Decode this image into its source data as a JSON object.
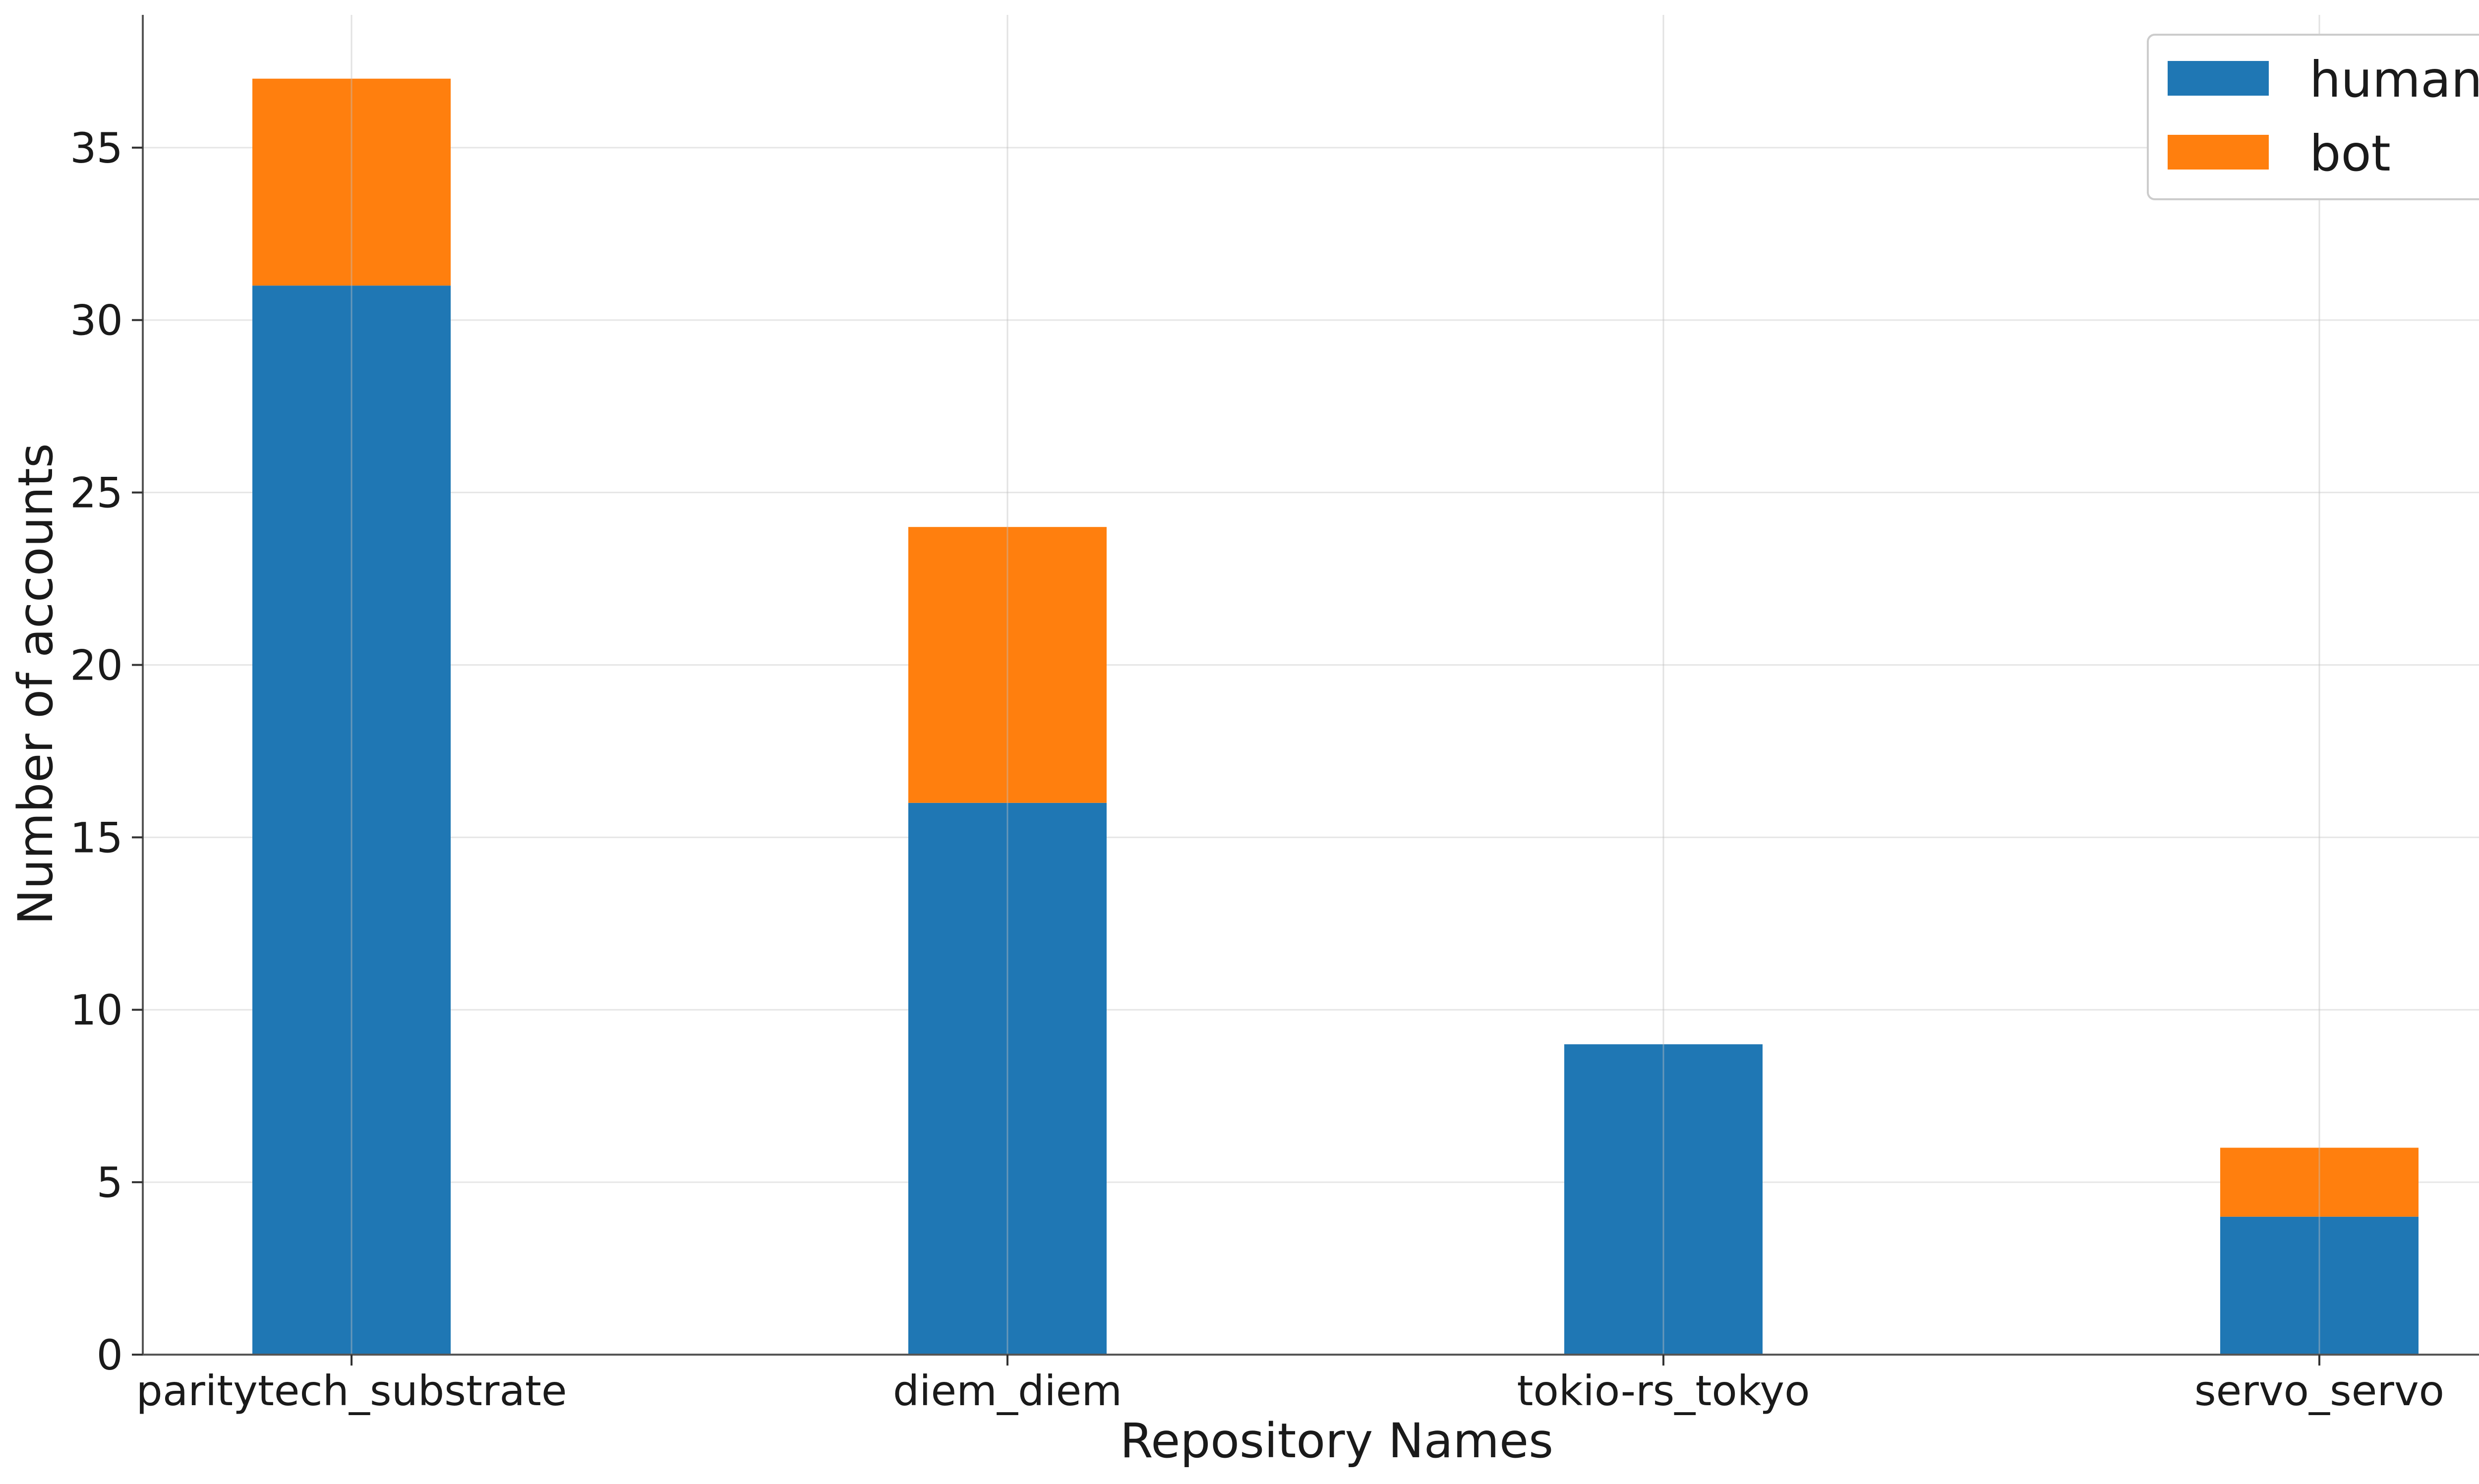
{
  "chart_data": {
    "type": "bar",
    "stacked": true,
    "categories": [
      "paritytech_substrate",
      "diem_diem",
      "tokio-rs_tokyo",
      "servo_servo"
    ],
    "series": [
      {
        "name": "human",
        "values": [
          31,
          16,
          9,
          4
        ],
        "color": "#1f77b4"
      },
      {
        "name": "bot",
        "values": [
          6,
          8,
          0,
          2
        ],
        "color": "#ff7f0e"
      }
    ],
    "xlabel": "Repository Names",
    "ylabel": "Number of accounts",
    "ylim": [
      0,
      38.85
    ],
    "yticks": [
      0,
      5,
      10,
      15,
      20,
      25,
      30,
      35
    ],
    "grid": true,
    "legend": "top-right"
  }
}
